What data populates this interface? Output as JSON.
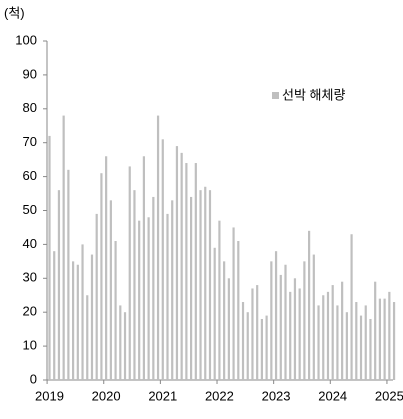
{
  "chart_data": {
    "type": "bar",
    "y_label": "(척)",
    "series": [
      {
        "name": "선박 해체량",
        "color": "#bfbfbf",
        "values": [
          72,
          38,
          56,
          78,
          62,
          35,
          34,
          40,
          25,
          37,
          49,
          61,
          66,
          53,
          41,
          22,
          20,
          63,
          56,
          47,
          66,
          48,
          54,
          78,
          71,
          49,
          53,
          69,
          67,
          64,
          54,
          64,
          56,
          57,
          56,
          39,
          47,
          35,
          30,
          45,
          41,
          23,
          20,
          27,
          28,
          18,
          19,
          35,
          38,
          31,
          34,
          26,
          30,
          27,
          35,
          44,
          37,
          22,
          25,
          26,
          28,
          22,
          29,
          20,
          43,
          23,
          19,
          22,
          18,
          29,
          24,
          24,
          26,
          23
        ]
      }
    ],
    "categories": [
      "2019",
      null,
      null,
      null,
      null,
      null,
      null,
      null,
      null,
      null,
      null,
      null,
      "2020",
      null,
      null,
      null,
      null,
      null,
      null,
      null,
      null,
      null,
      null,
      null,
      "2021",
      null,
      null,
      null,
      null,
      null,
      null,
      null,
      null,
      null,
      null,
      null,
      "2022",
      null,
      null,
      null,
      null,
      null,
      null,
      null,
      null,
      null,
      null,
      null,
      "2023",
      null,
      null,
      null,
      null,
      null,
      null,
      null,
      null,
      null,
      null,
      null,
      "2024",
      null,
      null,
      null,
      null,
      null,
      null,
      null,
      null,
      null,
      null,
      null,
      "2025",
      null
    ],
    "ylim": [
      0,
      100
    ],
    "yticks": [
      0,
      10,
      20,
      30,
      40,
      50,
      60,
      70,
      80,
      90,
      100
    ],
    "grid": false,
    "legend": "upper right"
  }
}
